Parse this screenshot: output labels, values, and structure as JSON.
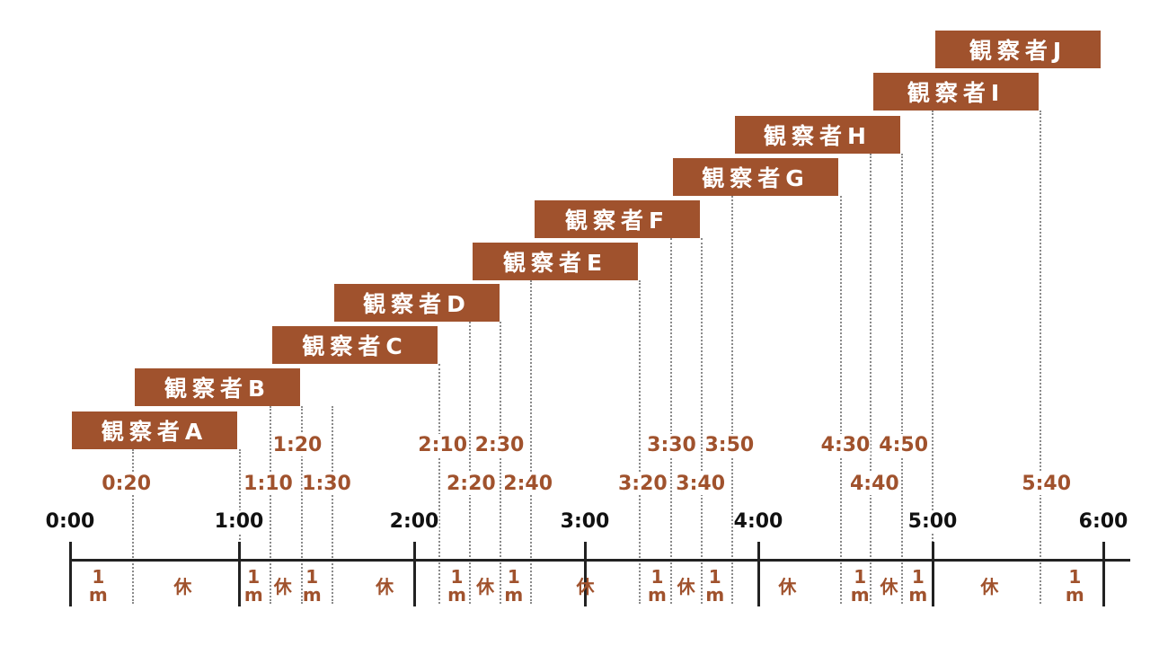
{
  "colors": {
    "accent": "#a0522d",
    "axis": "#222222",
    "grid": "#8a8a8a"
  },
  "observers": [
    {
      "label": "観察者A",
      "start": "0:00",
      "end": "0:57"
    },
    {
      "label": "観察者B",
      "start": "0:22",
      "end": "1:19"
    },
    {
      "label": "観察者C",
      "start": "1:10",
      "end": "2:08"
    },
    {
      "label": "観察者D",
      "start": "1:32",
      "end": "2:30"
    },
    {
      "label": "観察者E",
      "start": "2:20",
      "end": "3:18"
    },
    {
      "label": "観察者F",
      "start": "2:42",
      "end": "3:40"
    },
    {
      "label": "観察者G",
      "start": "3:31",
      "end": "4:28"
    },
    {
      "label": "観察者H",
      "start": "3:52",
      "end": "4:50"
    },
    {
      "label": "観察者I",
      "start": "4:40",
      "end": "5:38"
    },
    {
      "label": "観察者J",
      "start": "5:02",
      "end": "6:00"
    }
  ],
  "hour_labels": [
    "0:00",
    "1:00",
    "2:00",
    "3:00",
    "4:00",
    "5:00",
    "6:00"
  ],
  "time_marks_upper": [
    "1:20",
    "2:10",
    "2:30",
    "3:30",
    "3:50",
    "4:30",
    "4:50"
  ],
  "time_marks_lower": [
    "0:20",
    "1:10",
    "1:30",
    "2:20",
    "2:40",
    "3:20",
    "3:40",
    "4:40",
    "5:40"
  ],
  "segments": [
    {
      "text": "1\nm",
      "type": "measure",
      "from": "0:00",
      "to": "0:20"
    },
    {
      "text": "休",
      "type": "rest",
      "from": "0:20",
      "to": "1:00"
    },
    {
      "text": "1\nm",
      "type": "measure",
      "from": "1:00",
      "to": "1:10"
    },
    {
      "text": "休",
      "type": "rest",
      "from": "1:10",
      "to": "1:20"
    },
    {
      "text": "1\nm",
      "type": "measure",
      "from": "1:20",
      "to": "1:30"
    },
    {
      "text": "休",
      "type": "rest",
      "from": "1:30",
      "to": "2:10"
    },
    {
      "text": "1\nm",
      "type": "measure",
      "from": "2:10",
      "to": "2:20"
    },
    {
      "text": "休",
      "type": "rest",
      "from": "2:20",
      "to": "2:30"
    },
    {
      "text": "1\nm",
      "type": "measure",
      "from": "2:30",
      "to": "2:40"
    },
    {
      "text": "休",
      "type": "rest",
      "from": "2:40",
      "to": "3:20"
    },
    {
      "text": "1\nm",
      "type": "measure",
      "from": "3:20",
      "to": "3:30"
    },
    {
      "text": "休",
      "type": "rest",
      "from": "3:30",
      "to": "3:40"
    },
    {
      "text": "1\nm",
      "type": "measure",
      "from": "3:40",
      "to": "3:50"
    },
    {
      "text": "休",
      "type": "rest",
      "from": "3:50",
      "to": "4:30"
    },
    {
      "text": "1\nm",
      "type": "measure",
      "from": "4:30",
      "to": "4:40"
    },
    {
      "text": "休",
      "type": "rest",
      "from": "4:40",
      "to": "4:50"
    },
    {
      "text": "1\nm",
      "type": "measure",
      "from": "4:50",
      "to": "5:00"
    },
    {
      "text": "休",
      "type": "rest",
      "from": "5:00",
      "to": "5:40"
    },
    {
      "text": "1\nm",
      "type": "measure",
      "from": "5:40",
      "to": "6:00"
    }
  ]
}
